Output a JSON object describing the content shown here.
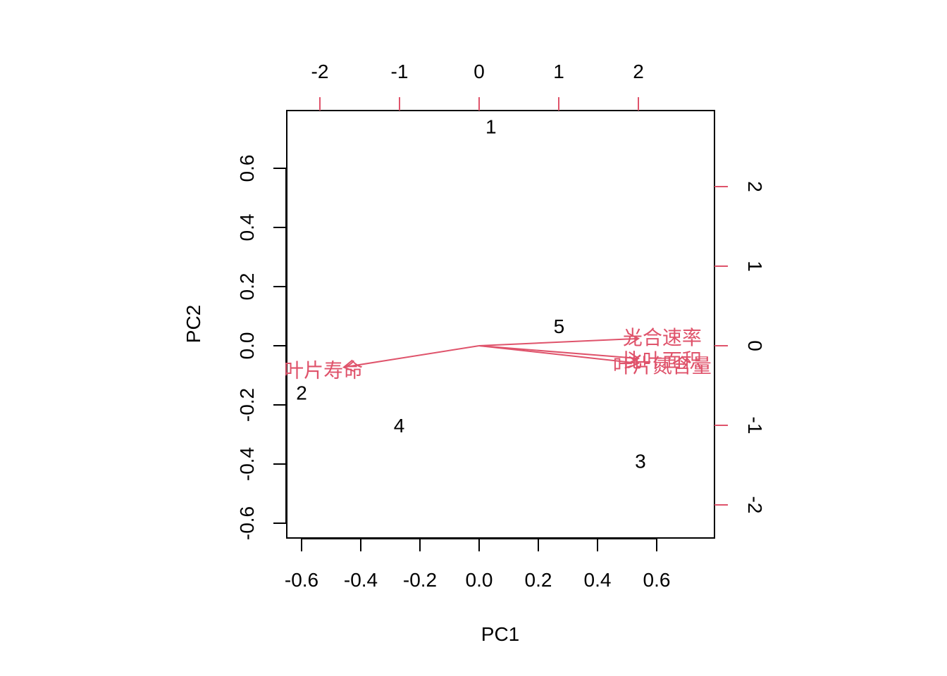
{
  "chart_data": {
    "type": "scatter",
    "subtype": "biplot",
    "title": "",
    "xlabel": "PC1",
    "ylabel": "PC2",
    "xlim": [
      -0.65,
      0.8
    ],
    "ylim": [
      -0.65,
      0.8
    ],
    "x_ticks": [
      "-0.6",
      "-0.4",
      "-0.2",
      "0.0",
      "0.2",
      "0.4",
      "0.6"
    ],
    "y_ticks": [
      "-0.6",
      "-0.4",
      "-0.2",
      "0.0",
      "0.2",
      "0.4",
      "0.6"
    ],
    "loading_axis_top_ticks": [
      "-2",
      "-1",
      "0",
      "1",
      "2"
    ],
    "loading_axis_right_ticks": [
      "-2",
      "-1",
      "0",
      "1",
      "2"
    ],
    "loading_axis_color": "#df536b",
    "observations": [
      {
        "label": "1",
        "x": 0.04,
        "y": 0.74
      },
      {
        "label": "2",
        "x": -0.6,
        "y": -0.16
      },
      {
        "label": "3",
        "x": 0.545,
        "y": -0.39
      },
      {
        "label": "4",
        "x": -0.27,
        "y": -0.27
      },
      {
        "label": "5",
        "x": 0.27,
        "y": 0.065
      }
    ],
    "variables": [
      {
        "label": "光合速率",
        "x": 2.0,
        "y": 0.09
      },
      {
        "label": "比叶面积",
        "x": 2.0,
        "y": -0.16
      },
      {
        "label": "叶片氮含量",
        "x": 2.0,
        "y": -0.22
      },
      {
        "label": "叶片寿命",
        "x": -1.7,
        "y": -0.27
      }
    ]
  }
}
